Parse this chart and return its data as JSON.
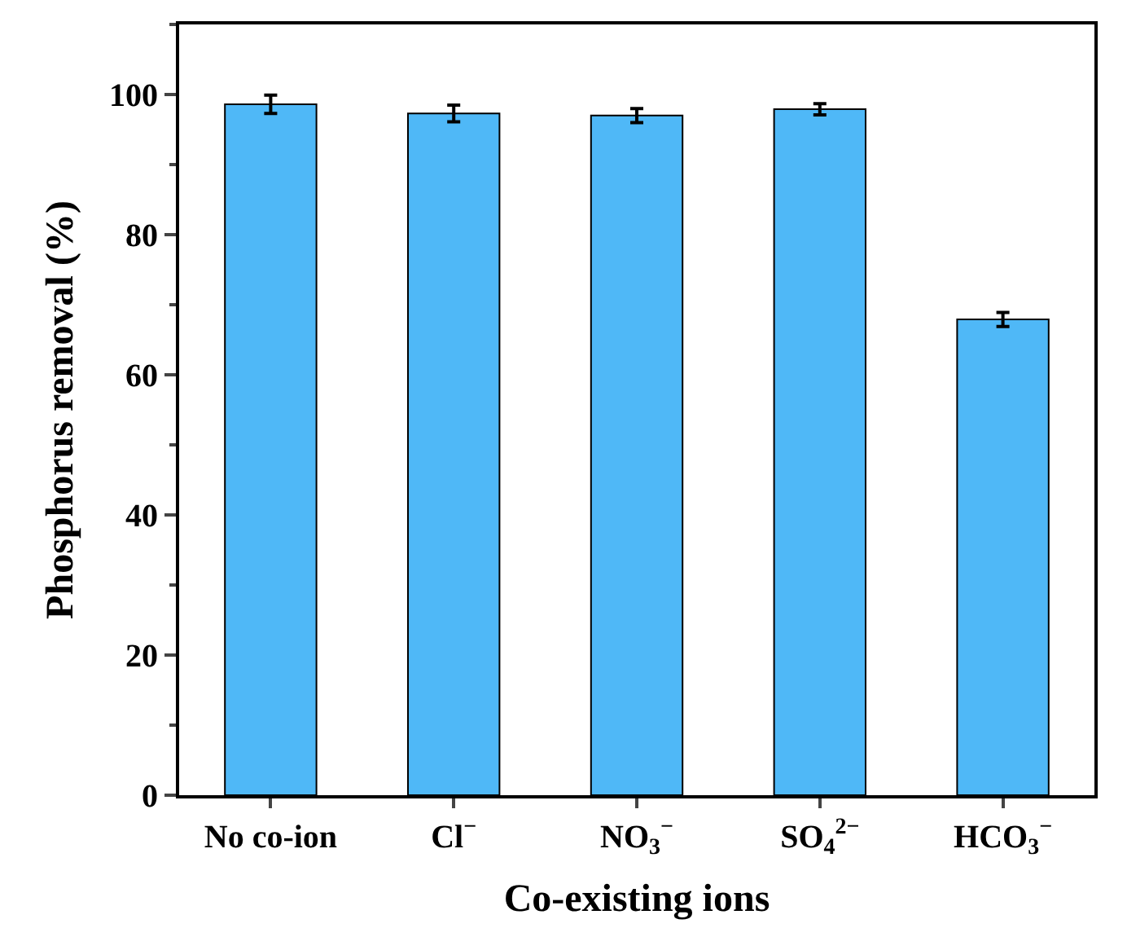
{
  "chart_data": {
    "type": "bar",
    "xlabel": "Co-existing ions",
    "ylabel": "Phosphorus removal (%)",
    "categories": [
      "No co-ion",
      "Cl$^{−}$",
      "NO$_{3}$$^{−}$",
      "SO$_{4}$$^{2−}$",
      "HCO$_{3}$$^{−}$"
    ],
    "values": [
      98.6,
      97.3,
      97.0,
      97.9,
      67.9
    ],
    "errors": [
      1.3,
      1.2,
      1.0,
      0.8,
      1.0
    ],
    "color": "#4fb8f7",
    "ylim": [
      0,
      110
    ],
    "yticks": [
      0,
      20,
      40,
      60,
      80,
      100
    ]
  }
}
